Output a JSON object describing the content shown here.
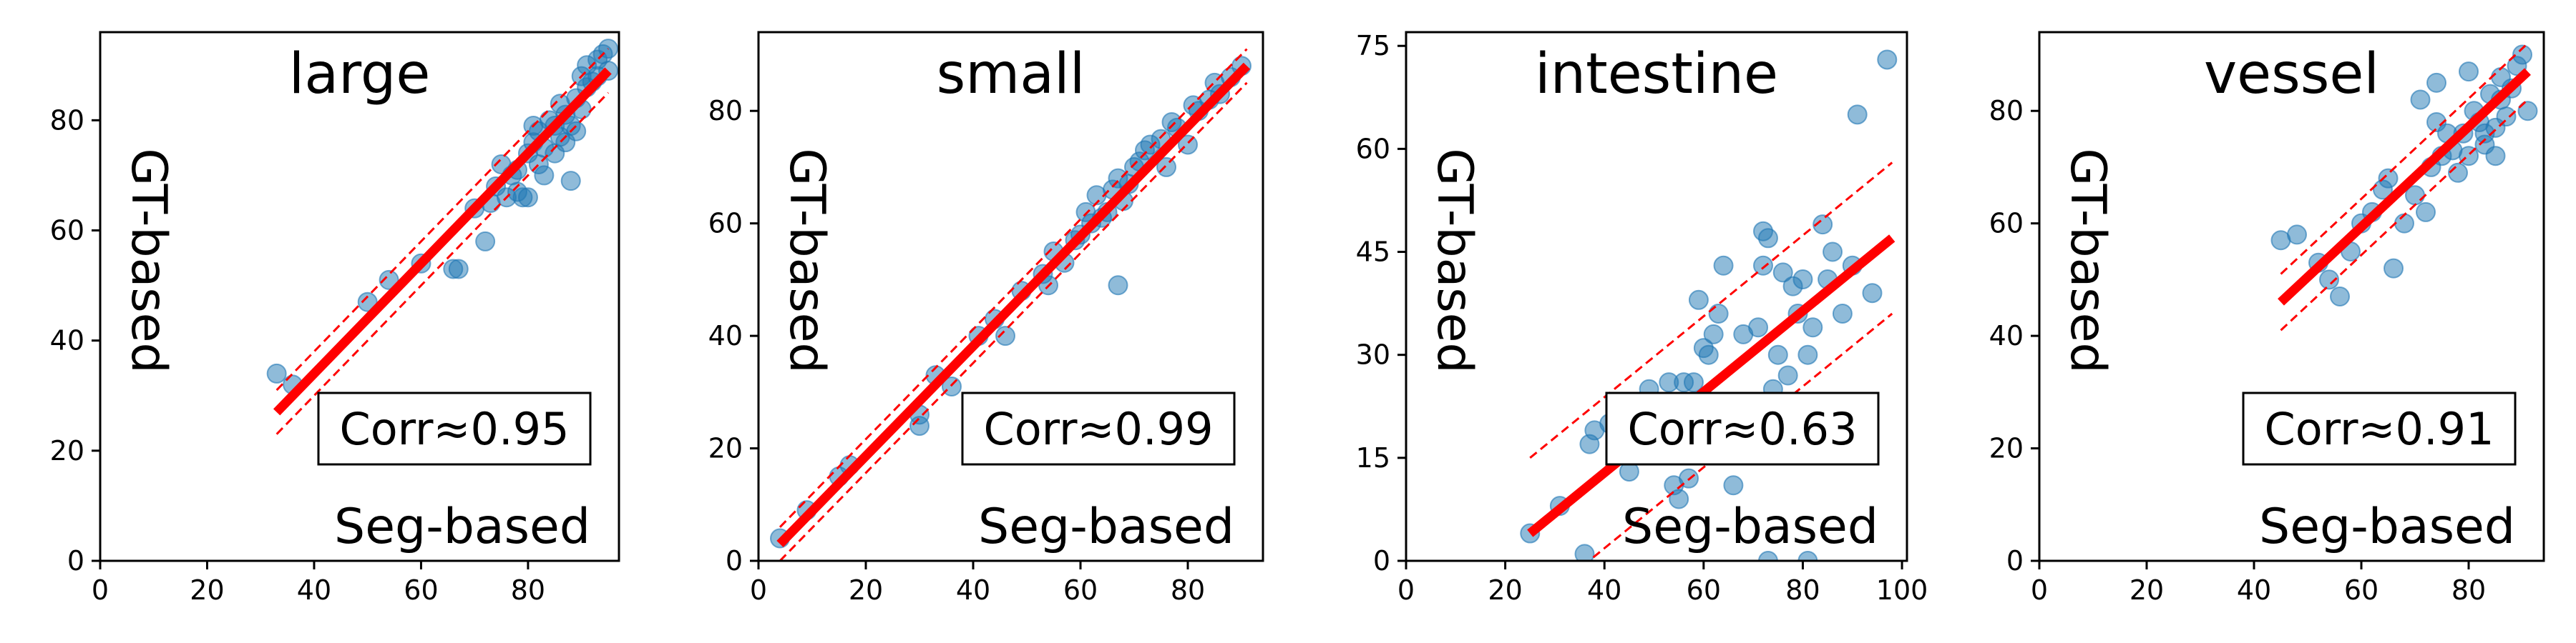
{
  "chart_data": [
    {
      "type": "scatter",
      "title": "large",
      "xlabel": "Seg-based",
      "ylabel": "GT-based",
      "xlim": [
        0,
        97
      ],
      "ylim": [
        0,
        96
      ],
      "xticks": [
        0,
        20,
        40,
        60,
        80
      ],
      "yticks": [
        0,
        20,
        40,
        60,
        80
      ],
      "annotation": "Corr≈0.95",
      "fit": {
        "x": [
          33,
          95
        ],
        "y": [
          27,
          89
        ],
        "band": 4
      },
      "points": [
        [
          33,
          34
        ],
        [
          36,
          32
        ],
        [
          50,
          47
        ],
        [
          54,
          51
        ],
        [
          60,
          54
        ],
        [
          66,
          53
        ],
        [
          67,
          53
        ],
        [
          70,
          64
        ],
        [
          72,
          58
        ],
        [
          73,
          65
        ],
        [
          74,
          68
        ],
        [
          75,
          72
        ],
        [
          76,
          66
        ],
        [
          77,
          70
        ],
        [
          78,
          67
        ],
        [
          78,
          71
        ],
        [
          79,
          66
        ],
        [
          80,
          66
        ],
        [
          80,
          74
        ],
        [
          81,
          76
        ],
        [
          81,
          79
        ],
        [
          82,
          72
        ],
        [
          82,
          78
        ],
        [
          83,
          70
        ],
        [
          83,
          75
        ],
        [
          84,
          80
        ],
        [
          85,
          74
        ],
        [
          85,
          79
        ],
        [
          86,
          77
        ],
        [
          86,
          83
        ],
        [
          87,
          76
        ],
        [
          87,
          81
        ],
        [
          88,
          69
        ],
        [
          88,
          79
        ],
        [
          89,
          78
        ],
        [
          89,
          84
        ],
        [
          90,
          88
        ],
        [
          90,
          82
        ],
        [
          91,
          86
        ],
        [
          91,
          90
        ],
        [
          92,
          87
        ],
        [
          93,
          91
        ],
        [
          93,
          88
        ],
        [
          94,
          92
        ],
        [
          95,
          89
        ],
        [
          95,
          93
        ]
      ]
    },
    {
      "type": "scatter",
      "title": "small",
      "xlabel": "Seg-based",
      "ylabel": "GT-based",
      "xlim": [
        0,
        94
      ],
      "ylim": [
        0,
        94
      ],
      "xticks": [
        0,
        20,
        40,
        60,
        80
      ],
      "yticks": [
        0,
        20,
        40,
        60,
        80
      ],
      "annotation": "Corr≈0.99",
      "fit": {
        "x": [
          4,
          91
        ],
        "y": [
          3,
          88
        ],
        "band": 3
      },
      "points": [
        [
          4,
          4
        ],
        [
          9,
          9
        ],
        [
          15,
          15
        ],
        [
          17,
          17
        ],
        [
          30,
          24
        ],
        [
          30,
          26
        ],
        [
          33,
          33
        ],
        [
          36,
          31
        ],
        [
          41,
          40
        ],
        [
          44,
          43
        ],
        [
          46,
          40
        ],
        [
          49,
          48
        ],
        [
          53,
          51
        ],
        [
          54,
          49
        ],
        [
          55,
          55
        ],
        [
          57,
          53
        ],
        [
          59,
          57
        ],
        [
          60,
          58
        ],
        [
          61,
          62
        ],
        [
          62,
          60
        ],
        [
          63,
          65
        ],
        [
          64,
          61
        ],
        [
          65,
          62
        ],
        [
          66,
          66
        ],
        [
          67,
          49
        ],
        [
          67,
          68
        ],
        [
          68,
          64
        ],
        [
          69,
          67
        ],
        [
          70,
          70
        ],
        [
          71,
          71
        ],
        [
          72,
          73
        ],
        [
          73,
          74
        ],
        [
          75,
          75
        ],
        [
          76,
          70
        ],
        [
          77,
          78
        ],
        [
          78,
          77
        ],
        [
          80,
          74
        ],
        [
          81,
          81
        ],
        [
          82,
          80
        ],
        [
          84,
          82
        ],
        [
          85,
          85
        ],
        [
          86,
          83
        ],
        [
          88,
          86
        ],
        [
          90,
          88
        ]
      ]
    },
    {
      "type": "scatter",
      "title": "intestine",
      "xlabel": "Seg-based",
      "ylabel": "GT-based",
      "xlim": [
        0,
        101
      ],
      "ylim": [
        0,
        77
      ],
      "xticks": [
        0,
        20,
        40,
        60,
        80,
        100
      ],
      "yticks": [
        0,
        15,
        30,
        45,
        60,
        75
      ],
      "annotation": "Corr≈0.63",
      "fit": {
        "x": [
          25,
          98
        ],
        "y": [
          4,
          47
        ],
        "band": 11
      },
      "points": [
        [
          25,
          4
        ],
        [
          31,
          8
        ],
        [
          36,
          1
        ],
        [
          37,
          17
        ],
        [
          38,
          19
        ],
        [
          41,
          20
        ],
        [
          45,
          13
        ],
        [
          49,
          25
        ],
        [
          50,
          18
        ],
        [
          53,
          26
        ],
        [
          54,
          11
        ],
        [
          55,
          9
        ],
        [
          56,
          26
        ],
        [
          57,
          12
        ],
        [
          58,
          26
        ],
        [
          59,
          38
        ],
        [
          60,
          31
        ],
        [
          61,
          30
        ],
        [
          62,
          33
        ],
        [
          63,
          36
        ],
        [
          64,
          43
        ],
        [
          66,
          11
        ],
        [
          68,
          33
        ],
        [
          70,
          22
        ],
        [
          71,
          34
        ],
        [
          72,
          43
        ],
        [
          72,
          48
        ],
        [
          73,
          47
        ],
        [
          74,
          25
        ],
        [
          75,
          30
        ],
        [
          76,
          42
        ],
        [
          77,
          27
        ],
        [
          78,
          40
        ],
        [
          79,
          36
        ],
        [
          80,
          41
        ],
        [
          81,
          30
        ],
        [
          82,
          34
        ],
        [
          84,
          49
        ],
        [
          85,
          41
        ],
        [
          86,
          45
        ],
        [
          88,
          36
        ],
        [
          90,
          43
        ],
        [
          91,
          65
        ],
        [
          94,
          39
        ],
        [
          97,
          73
        ],
        [
          81,
          0
        ],
        [
          73,
          0
        ]
      ]
    },
    {
      "type": "scatter",
      "title": "vessel",
      "xlabel": "Seg-based",
      "ylabel": "GT-based",
      "xlim": [
        0,
        94
      ],
      "ylim": [
        0,
        94
      ],
      "xticks": [
        0,
        20,
        40,
        60,
        80
      ],
      "yticks": [
        0,
        20,
        40,
        60,
        80
      ],
      "annotation": "Corr≈0.91",
      "fit": {
        "x": [
          45,
          91
        ],
        "y": [
          46,
          87
        ],
        "band": 5
      },
      "points": [
        [
          45,
          57
        ],
        [
          48,
          58
        ],
        [
          52,
          53
        ],
        [
          54,
          50
        ],
        [
          56,
          47
        ],
        [
          58,
          55
        ],
        [
          60,
          60
        ],
        [
          62,
          62
        ],
        [
          64,
          66
        ],
        [
          65,
          68
        ],
        [
          66,
          52
        ],
        [
          68,
          60
        ],
        [
          70,
          65
        ],
        [
          72,
          62
        ],
        [
          73,
          70
        ],
        [
          74,
          78
        ],
        [
          75,
          72
        ],
        [
          76,
          76
        ],
        [
          77,
          73
        ],
        [
          78,
          69
        ],
        [
          79,
          76
        ],
        [
          80,
          72
        ],
        [
          81,
          80
        ],
        [
          82,
          78
        ],
        [
          83,
          76
        ],
        [
          84,
          83
        ],
        [
          85,
          77
        ],
        [
          86,
          82
        ],
        [
          86,
          86
        ],
        [
          87,
          79
        ],
        [
          88,
          84
        ],
        [
          89,
          88
        ],
        [
          90,
          90
        ],
        [
          91,
          80
        ],
        [
          80,
          87
        ],
        [
          74,
          85
        ],
        [
          71,
          82
        ],
        [
          83,
          74
        ],
        [
          85,
          72
        ]
      ]
    }
  ]
}
